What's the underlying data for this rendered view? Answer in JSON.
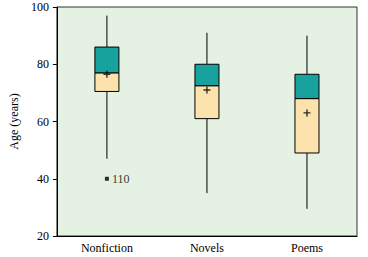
{
  "chart_data": {
    "type": "boxplot",
    "categories": [
      "Nonfiction",
      "Novels",
      "Poems"
    ],
    "boxes": [
      {
        "low": 47,
        "q1": 70.5,
        "median": 77,
        "q3": 86,
        "high": 97,
        "mean": 76.5
      },
      {
        "low": 35,
        "q1": 61,
        "median": 72.5,
        "q3": 80,
        "high": 91,
        "mean": 71
      },
      {
        "low": 29.5,
        "q1": 49,
        "median": 68,
        "q3": 76.5,
        "high": 90,
        "mean": 63
      }
    ],
    "outliers": [
      {
        "category": "Nonfiction",
        "value": 40,
        "label": "110"
      }
    ],
    "ylabel": "Age (years)",
    "ylim": [
      20,
      100
    ],
    "yticks": [
      20,
      40,
      60,
      80,
      100
    ],
    "colors": [
      "#fce3ad",
      "#17a29d"
    ],
    "grid": false
  }
}
